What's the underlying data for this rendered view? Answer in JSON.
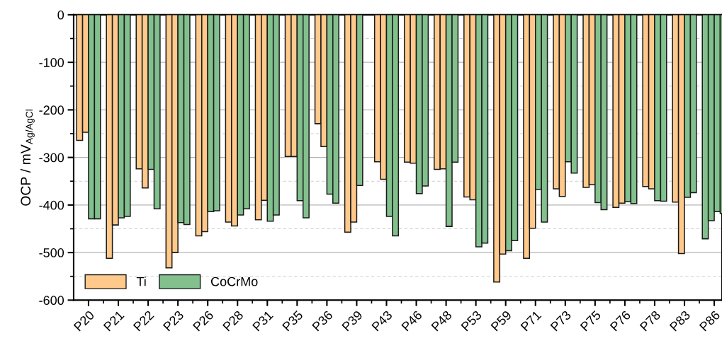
{
  "chart_data": {
    "type": "bar",
    "ylabel": "OCP / mV$_{Ag/AgCl}$",
    "categories": [
      "P20",
      "P21",
      "P22",
      "P23",
      "P26",
      "P28",
      "P31",
      "P35",
      "P36",
      "P39",
      "P43",
      "P46",
      "P48",
      "P53",
      "P59",
      "P71",
      "P73",
      "P75",
      "P76",
      "P78",
      "P83",
      "P86"
    ],
    "series": [
      {
        "name": "Ti",
        "color": "#ffc98b",
        "colors": [
          "#ffc98b",
          "#ffc98b",
          "#ffc98b",
          "#ffc98b",
          "#ffc98b",
          "#ffc98b",
          "#ffc98b",
          "#ffc98b",
          "#ffc98b",
          "#ffc98b",
          "#ffc98b",
          "#ffc98b",
          "#ffc98b",
          "#ffc98b",
          "#ffc98b",
          "#ffc98b",
          "#ffc98b",
          "#ffc98b",
          "#ffc98b",
          "#ffc98b",
          "#ffc98b",
          "#82c08e"
        ],
        "values": [
          -264,
          -512,
          -324,
          -532,
          -465,
          -436,
          -431,
          -298,
          -229,
          -457,
          -309,
          -310,
          -325,
          -383,
          -562,
          -512,
          -366,
          -363,
          -405,
          -361,
          -394,
          -471
        ]
      },
      {
        "colors": [
          "#ffc98b",
          "#ffc98b",
          "#ffc98b",
          "#ffc98b",
          "#ffc98b",
          "#ffc98b",
          "#ffc98b",
          "#ffc98b",
          "#ffc98b",
          "#ffc98b",
          "#ffc98b",
          "#ffc98b",
          "#ffc98b",
          "#ffc98b",
          "#ffc98b",
          "#ffc98b",
          "#ffc98b",
          "#ffc98b",
          "#ffc98b",
          "#ffc98b",
          "#ffc98b",
          "#82c08e"
        ],
        "values": [
          -247,
          -442,
          -364,
          -500,
          -456,
          -444,
          -390,
          -298,
          -277,
          -436,
          -346,
          -312,
          -324,
          -389,
          -503,
          -449,
          -382,
          -357,
          -396,
          -366,
          -502,
          -433
        ]
      },
      {
        "name": "CoCrMo",
        "color": "#82c08e",
        "values": [
          -429,
          -427,
          -325,
          -437,
          -414,
          -421,
          -434,
          -391,
          -377,
          -359,
          -424,
          -376,
          -445,
          -488,
          -496,
          -367,
          -309,
          -395,
          -393,
          -391,
          -384,
          -414
        ]
      },
      {
        "color": "#82c08e",
        "values": [
          -429,
          -424,
          -408,
          -441,
          -412,
          -408,
          -421,
          -427,
          -396,
          null,
          -465,
          -360,
          -310,
          -480,
          -475,
          -436,
          -333,
          -410,
          -397,
          -392,
          -374,
          -418
        ]
      }
    ],
    "ylim": [
      -600,
      0
    ],
    "yticks": [
      -600,
      {
        "value": -550,
        "label": null
      },
      -500,
      {
        "value": -450,
        "label": null
      },
      -400,
      {
        "value": -350,
        "label": null
      },
      -300,
      {
        "value": -250,
        "label": null
      },
      -200,
      {
        "value": -150,
        "label": null
      },
      -100,
      {
        "value": -50,
        "label": null
      },
      0
    ],
    "grid": "y",
    "legend": "bottom left"
  }
}
